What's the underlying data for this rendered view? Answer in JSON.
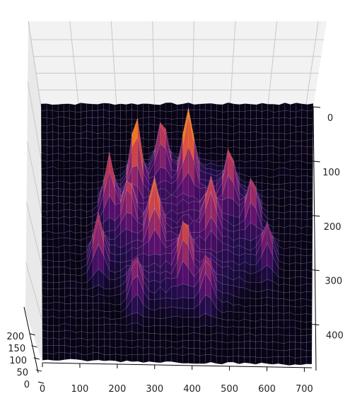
{
  "chart_data": {
    "type": "surface",
    "colormap": "inferno",
    "grid": true,
    "x_ticks": [
      "0",
      "100",
      "200",
      "300",
      "400",
      "500",
      "600",
      "700"
    ],
    "y_ticks": [
      "0",
      "100",
      "200",
      "300",
      "400"
    ],
    "z_ticks": [
      "0",
      "50",
      "100",
      "150",
      "200"
    ],
    "xlim": [
      0,
      720
    ],
    "ylim": [
      0,
      480
    ],
    "zlim": [
      0,
      255
    ],
    "peaks": [
      {
        "x": 390,
        "y": 150,
        "z": 255
      },
      {
        "x": 250,
        "y": 160,
        "z": 220
      },
      {
        "x": 180,
        "y": 200,
        "z": 170
      },
      {
        "x": 320,
        "y": 130,
        "z": 160
      },
      {
        "x": 300,
        "y": 260,
        "z": 175
      },
      {
        "x": 150,
        "y": 300,
        "z": 160
      },
      {
        "x": 450,
        "y": 240,
        "z": 140
      },
      {
        "x": 500,
        "y": 180,
        "z": 150
      },
      {
        "x": 560,
        "y": 220,
        "z": 130
      },
      {
        "x": 600,
        "y": 290,
        "z": 120
      },
      {
        "x": 380,
        "y": 320,
        "z": 150
      },
      {
        "x": 250,
        "y": 360,
        "z": 120
      },
      {
        "x": 230,
        "y": 230,
        "z": 130
      },
      {
        "x": 440,
        "y": 360,
        "z": 110
      }
    ]
  }
}
